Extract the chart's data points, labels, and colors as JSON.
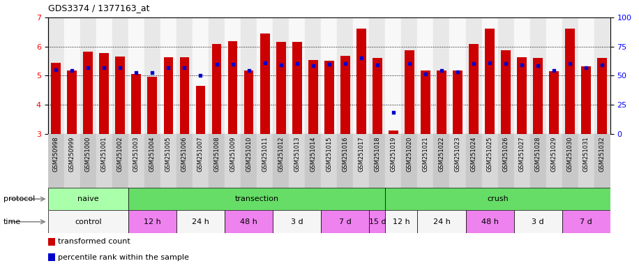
{
  "title": "GDS3374 / 1377163_at",
  "samples": [
    "GSM250998",
    "GSM250999",
    "GSM251000",
    "GSM251001",
    "GSM251002",
    "GSM251003",
    "GSM251004",
    "GSM251005",
    "GSM251006",
    "GSM251007",
    "GSM251008",
    "GSM251009",
    "GSM251010",
    "GSM251011",
    "GSM251012",
    "GSM251013",
    "GSM251014",
    "GSM251015",
    "GSM251016",
    "GSM251017",
    "GSM251018",
    "GSM251019",
    "GSM251020",
    "GSM251021",
    "GSM251022",
    "GSM251023",
    "GSM251024",
    "GSM251025",
    "GSM251026",
    "GSM251027",
    "GSM251028",
    "GSM251029",
    "GSM251030",
    "GSM251031",
    "GSM251032"
  ],
  "bar_heights": [
    5.45,
    5.18,
    5.83,
    5.77,
    5.65,
    5.07,
    4.97,
    5.63,
    5.63,
    4.65,
    6.08,
    6.18,
    5.17,
    6.45,
    6.17,
    6.17,
    5.55,
    5.52,
    5.69,
    6.62,
    5.62,
    3.12,
    5.87,
    5.17,
    5.18,
    5.17,
    6.09,
    6.62,
    5.87,
    5.63,
    5.61,
    5.16,
    6.62,
    5.33,
    5.62
  ],
  "blue_dot_values": [
    5.2,
    5.18,
    5.27,
    5.27,
    5.27,
    5.1,
    5.1,
    5.27,
    5.27,
    5.01,
    5.4,
    5.4,
    5.17,
    5.45,
    5.37,
    5.42,
    5.35,
    5.4,
    5.42,
    5.62,
    5.37,
    3.75,
    5.42,
    5.05,
    5.18,
    5.12,
    5.43,
    5.44,
    5.42,
    5.37,
    5.35,
    5.17,
    5.43,
    5.27,
    5.37
  ],
  "protocol_groups": [
    {
      "label": "naive",
      "start": 0,
      "end": 4,
      "color": "#aaffaa"
    },
    {
      "label": "transection",
      "start": 5,
      "end": 20,
      "color": "#66dd66"
    },
    {
      "label": "crush",
      "start": 21,
      "end": 34,
      "color": "#66dd66"
    }
  ],
  "time_groups": [
    {
      "label": "control",
      "start": 0,
      "end": 4,
      "color": "#f5f5f5"
    },
    {
      "label": "12 h",
      "start": 5,
      "end": 7,
      "color": "#ee82ee"
    },
    {
      "label": "24 h",
      "start": 8,
      "end": 10,
      "color": "#f5f5f5"
    },
    {
      "label": "48 h",
      "start": 11,
      "end": 13,
      "color": "#ee82ee"
    },
    {
      "label": "3 d",
      "start": 14,
      "end": 16,
      "color": "#f5f5f5"
    },
    {
      "label": "7 d",
      "start": 17,
      "end": 19,
      "color": "#ee82ee"
    },
    {
      "label": "15 d",
      "start": 20,
      "end": 20,
      "color": "#ee82ee"
    },
    {
      "label": "12 h",
      "start": 21,
      "end": 22,
      "color": "#f5f5f5"
    },
    {
      "label": "24 h",
      "start": 23,
      "end": 25,
      "color": "#f5f5f5"
    },
    {
      "label": "48 h",
      "start": 26,
      "end": 28,
      "color": "#ee82ee"
    },
    {
      "label": "3 d",
      "start": 29,
      "end": 31,
      "color": "#f5f5f5"
    },
    {
      "label": "7 d",
      "start": 32,
      "end": 34,
      "color": "#ee82ee"
    }
  ],
  "ylim_left": [
    3,
    7
  ],
  "ylim_right": [
    0,
    100
  ],
  "yticks_left": [
    3,
    4,
    5,
    6,
    7
  ],
  "yticks_right": [
    0,
    25,
    50,
    75,
    100
  ],
  "bar_color": "#cc0000",
  "dot_color": "#0000cc",
  "grid_color": "#000000",
  "bar_width": 0.6,
  "legend_red": "transformed count",
  "legend_blue": "percentile rank within the sample",
  "title_fontsize": 9,
  "tick_fontsize": 6,
  "label_fontsize": 8
}
